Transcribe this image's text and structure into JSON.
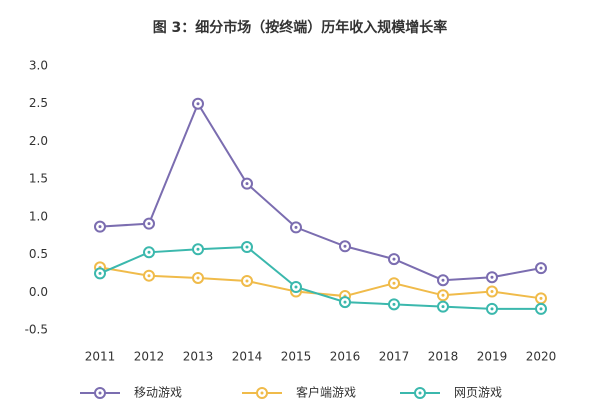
{
  "chart_data": {
    "type": "line",
    "title": "图 3：细分市场（按终端）历年收入规模增长率",
    "categories": [
      "2011",
      "2012",
      "2013",
      "2014",
      "2015",
      "2016",
      "2017",
      "2018",
      "2019",
      "2020"
    ],
    "series": [
      {
        "name": "移动游戏",
        "color": "#7b6db0",
        "values": [
          0.87,
          0.91,
          2.5,
          1.44,
          0.86,
          0.61,
          0.44,
          0.16,
          0.2,
          0.32
        ]
      },
      {
        "name": "客户端游戏",
        "color": "#f0bb4a",
        "values": [
          0.33,
          0.22,
          0.19,
          0.15,
          0.01,
          -0.05,
          0.12,
          -0.04,
          0.01,
          -0.08
        ]
      },
      {
        "name": "网页游戏",
        "color": "#3bb8ad",
        "values": [
          0.25,
          0.53,
          0.57,
          0.6,
          0.07,
          -0.13,
          -0.16,
          -0.19,
          -0.22,
          -0.22
        ]
      }
    ],
    "ylim": [
      -0.5,
      3
    ],
    "yticks": [
      {
        "value": 3,
        "label": "3.0"
      },
      2.5,
      {
        "value": 2,
        "label": "2.0"
      },
      1.5,
      {
        "value": 1,
        "label": "1.0"
      },
      0.5,
      {
        "value": 0,
        "label": "0.0"
      },
      -0.5
    ],
    "grid": false,
    "legend": "bottom"
  }
}
